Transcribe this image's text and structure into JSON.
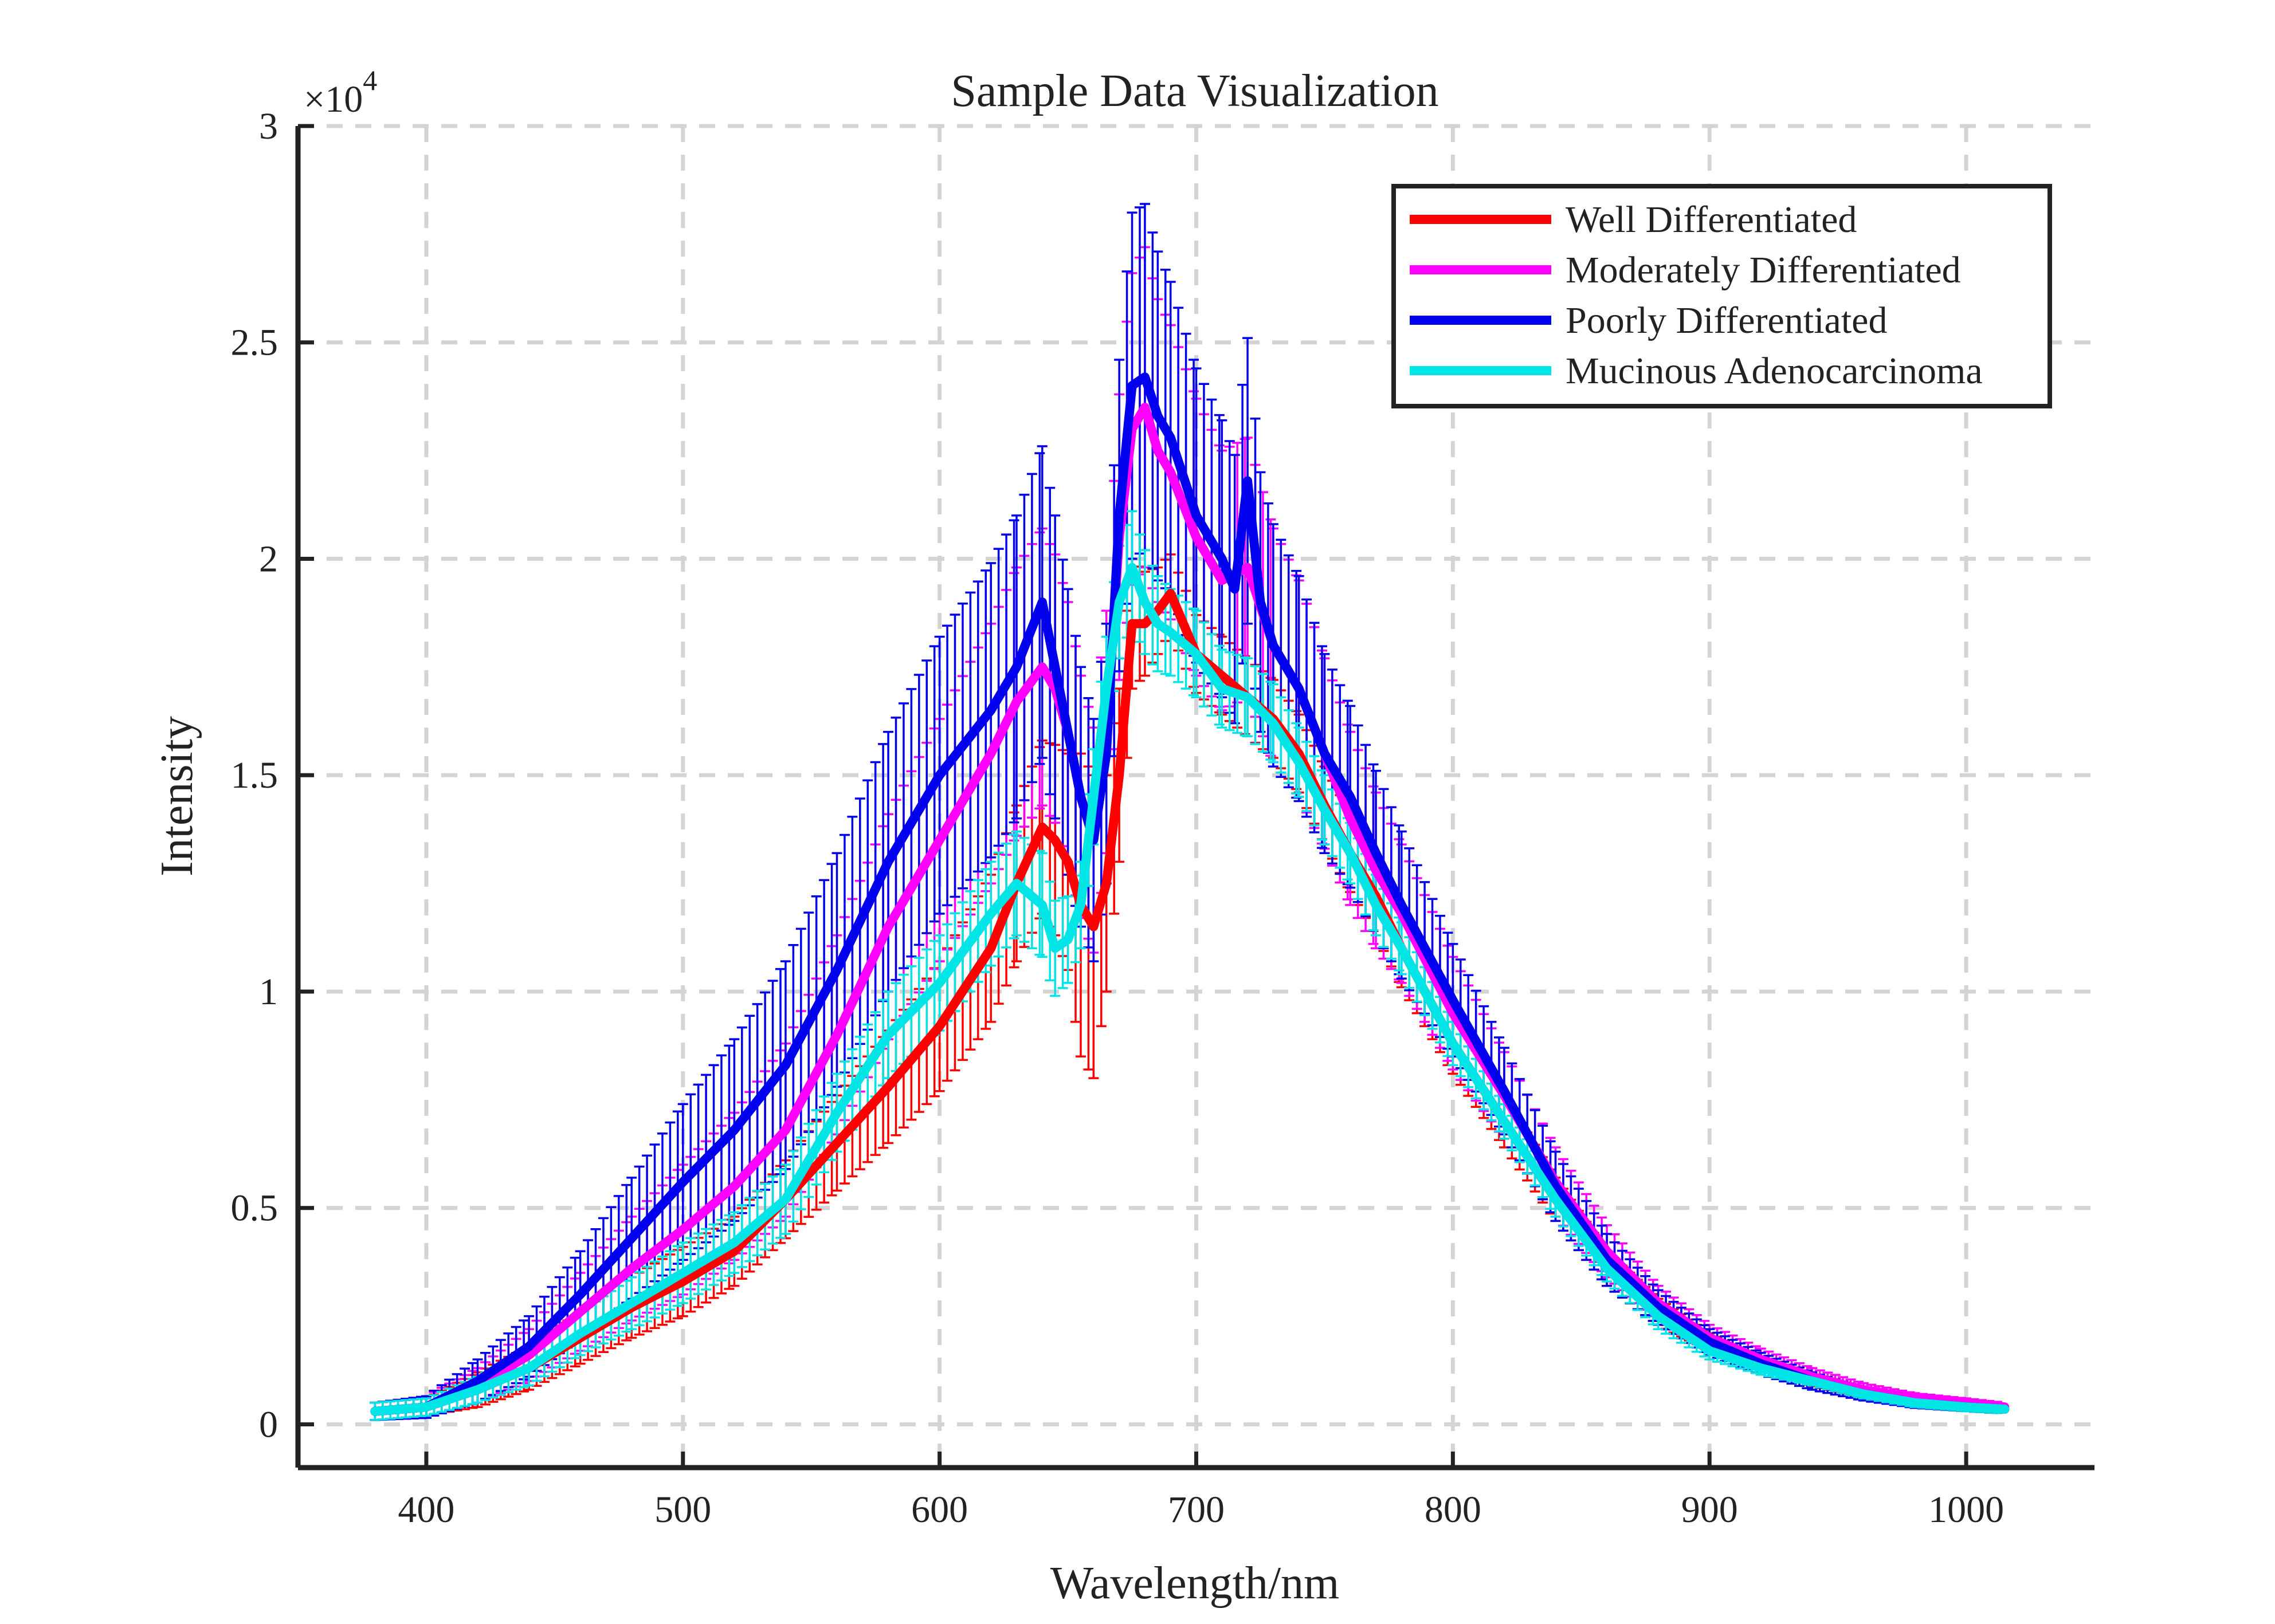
{
  "chart_data": {
    "type": "line",
    "title": "Sample Data Visualization",
    "xlabel": "Wavelength/nm",
    "ylabel": "Intensity",
    "y_exponent_label": "×10",
    "y_exponent_power": "4",
    "xlim": [
      350,
      1050
    ],
    "ylim": [
      -1000,
      30000
    ],
    "xticks": [
      400,
      500,
      600,
      700,
      800,
      900,
      1000
    ],
    "xtick_labels": [
      "400",
      "500",
      "600",
      "700",
      "800",
      "900",
      "1000"
    ],
    "yticks": [
      0,
      5000,
      10000,
      15000,
      20000,
      25000,
      30000
    ],
    "ytick_labels": [
      "0",
      "0.5",
      "1",
      "1.5",
      "2",
      "2.5",
      "3"
    ],
    "grid": true,
    "legend_position": "top-right",
    "series": [
      {
        "name": "Well Differentiated",
        "color": "#ff0000",
        "x": [
          380,
          400,
          420,
          440,
          460,
          480,
          500,
          520,
          540,
          560,
          580,
          600,
          620,
          630,
          640,
          645,
          650,
          655,
          660,
          665,
          670,
          675,
          680,
          685,
          690,
          700,
          710,
          720,
          730,
          740,
          750,
          760,
          770,
          780,
          800,
          820,
          840,
          860,
          880,
          900,
          920,
          940,
          960,
          980,
          1000,
          1015
        ],
        "y": [
          300,
          400,
          800,
          1300,
          2000,
          2700,
          3300,
          4000,
          5200,
          6500,
          7800,
          9200,
          11000,
          12500,
          13800,
          13500,
          13000,
          12000,
          11500,
          12500,
          15000,
          18500,
          18500,
          18800,
          19200,
          17800,
          17300,
          16800,
          16300,
          15500,
          14300,
          13200,
          12200,
          11000,
          8800,
          7000,
          5200,
          3600,
          2600,
          1900,
          1400,
          1000,
          700,
          500,
          400,
          350
        ],
        "err": [
          200,
          200,
          400,
          500,
          600,
          700,
          800,
          800,
          900,
          1100,
          1300,
          1500,
          1700,
          1800,
          2000,
          2200,
          2500,
          3500,
          3500,
          2500,
          2000,
          1500,
          1200,
          1000,
          900,
          900,
          900,
          900,
          900,
          900,
          900,
          900,
          900,
          900,
          700,
          600,
          500,
          400,
          300,
          200,
          150,
          120,
          100,
          100,
          100,
          100
        ]
      },
      {
        "name": "Moderately Differentiated",
        "color": "#ff00ff",
        "x": [
          380,
          400,
          420,
          440,
          460,
          480,
          500,
          520,
          540,
          560,
          580,
          600,
          620,
          630,
          640,
          645,
          650,
          655,
          660,
          665,
          670,
          675,
          680,
          685,
          690,
          700,
          710,
          720,
          730,
          740,
          750,
          760,
          770,
          780,
          800,
          820,
          840,
          860,
          880,
          900,
          920,
          940,
          960,
          980,
          1000,
          1015
        ],
        "y": [
          300,
          400,
          900,
          1600,
          2600,
          3600,
          4500,
          5500,
          6800,
          9000,
          11500,
          13500,
          15500,
          16700,
          17500,
          17000,
          16000,
          14500,
          13500,
          16000,
          20500,
          23000,
          23500,
          22500,
          22000,
          20500,
          19500,
          19800,
          18000,
          17000,
          15500,
          14000,
          12800,
          11800,
          9500,
          7600,
          5600,
          4000,
          2800,
          2000,
          1500,
          1100,
          800,
          600,
          500,
          400
        ],
        "err": [
          200,
          250,
          400,
          600,
          900,
          1200,
          1500,
          1700,
          2000,
          2300,
          2600,
          2800,
          3000,
          3100,
          3200,
          3100,
          3000,
          2800,
          2600,
          2800,
          3300,
          3600,
          3700,
          3500,
          3400,
          3200,
          3000,
          3000,
          2700,
          2500,
          2200,
          2000,
          1800,
          1600,
          1300,
          1000,
          800,
          600,
          400,
          300,
          250,
          200,
          150,
          120,
          100,
          100
        ]
      },
      {
        "name": "Poorly Differentiated",
        "color": "#0000ee",
        "x": [
          380,
          400,
          420,
          440,
          460,
          480,
          500,
          520,
          540,
          560,
          580,
          600,
          620,
          630,
          640,
          645,
          650,
          655,
          660,
          665,
          670,
          675,
          680,
          685,
          690,
          700,
          710,
          715,
          720,
          725,
          730,
          740,
          750,
          760,
          770,
          780,
          800,
          820,
          840,
          860,
          880,
          900,
          920,
          940,
          960,
          980,
          1000,
          1015
        ],
        "y": [
          300,
          400,
          1000,
          1800,
          3000,
          4300,
          5600,
          6800,
          8300,
          10500,
          13000,
          15000,
          16500,
          17500,
          19000,
          17500,
          16000,
          14500,
          13500,
          15500,
          21000,
          24000,
          24200,
          23300,
          22800,
          21000,
          20000,
          19300,
          21800,
          19000,
          18000,
          17000,
          15500,
          14500,
          13200,
          12000,
          9800,
          7700,
          5500,
          3800,
          2700,
          1900,
          1400,
          1000,
          700,
          500,
          400,
          350
        ],
        "err": [
          200,
          250,
          500,
          700,
          1000,
          1400,
          1800,
          2100,
          2400,
          2700,
          3000,
          3200,
          3400,
          3500,
          3600,
          3500,
          3300,
          3000,
          2800,
          3000,
          3600,
          4000,
          4000,
          3800,
          3600,
          3400,
          3200,
          3100,
          3300,
          3000,
          2800,
          2600,
          2300,
          2100,
          1900,
          1700,
          1300,
          1000,
          800,
          600,
          400,
          300,
          250,
          200,
          150,
          120,
          100,
          100
        ]
      },
      {
        "name": "Mucinous Adenocarcinoma",
        "color": "#00e5e5",
        "x": [
          380,
          400,
          420,
          440,
          460,
          480,
          500,
          520,
          540,
          560,
          580,
          600,
          620,
          630,
          640,
          645,
          650,
          655,
          660,
          665,
          670,
          675,
          680,
          685,
          690,
          700,
          710,
          720,
          730,
          740,
          750,
          760,
          770,
          780,
          800,
          820,
          840,
          860,
          880,
          900,
          920,
          940,
          960,
          980,
          1000,
          1015
        ],
        "y": [
          300,
          400,
          800,
          1300,
          2100,
          2800,
          3500,
          4200,
          5200,
          7200,
          9000,
          10200,
          11800,
          12500,
          12000,
          11000,
          11200,
          12000,
          14500,
          17000,
          19000,
          19800,
          19000,
          18500,
          18300,
          17800,
          17000,
          16800,
          16200,
          15300,
          14200,
          13200,
          12000,
          11000,
          8800,
          7000,
          5200,
          3600,
          2500,
          1700,
          1300,
          1000,
          700,
          500,
          400,
          350
        ],
        "err": [
          200,
          200,
          300,
          400,
          500,
          600,
          700,
          700,
          800,
          900,
          1000,
          1100,
          1200,
          1200,
          1200,
          1100,
          1000,
          1000,
          1100,
          1200,
          1300,
          1300,
          1200,
          1100,
          1000,
          1000,
          900,
          900,
          900,
          800,
          800,
          700,
          700,
          600,
          500,
          400,
          400,
          300,
          300,
          200,
          150,
          100,
          100,
          100,
          100,
          100
        ]
      }
    ]
  }
}
